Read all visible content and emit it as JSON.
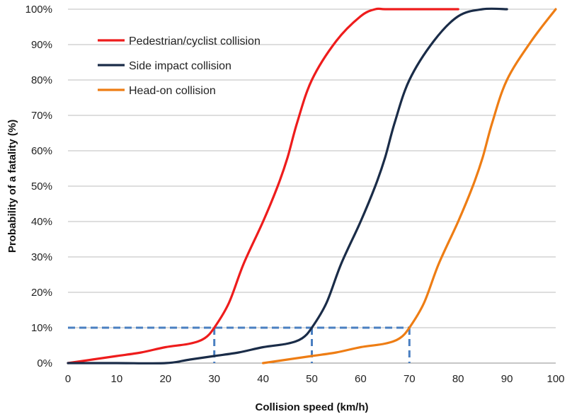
{
  "chart_data": {
    "type": "line",
    "title": "",
    "xlabel": "Collision speed (km/h)",
    "ylabel": "Probability of a fatality (%)",
    "xlim": [
      0,
      100
    ],
    "ylim": [
      0,
      100
    ],
    "x_ticks": [
      0,
      10,
      20,
      30,
      40,
      50,
      60,
      70,
      80,
      90,
      100
    ],
    "y_ticks": [
      0,
      10,
      20,
      30,
      40,
      50,
      60,
      70,
      80,
      90,
      100
    ],
    "x_tick_labels": [
      "0",
      "10",
      "20",
      "30",
      "40",
      "50",
      "60",
      "70",
      "80",
      "90",
      "100"
    ],
    "y_tick_labels": [
      "0%",
      "10%",
      "20%",
      "30%",
      "40%",
      "50%",
      "60%",
      "70%",
      "80%",
      "90%",
      "100%"
    ],
    "grid": "horizontal",
    "legend_position": "top-left",
    "series": [
      {
        "name": "Pedestrian/cyclist collision",
        "color": "#ee1c1c",
        "points": [
          [
            0,
            0
          ],
          [
            5,
            1
          ],
          [
            10,
            2
          ],
          [
            15,
            3
          ],
          [
            20,
            4.5
          ],
          [
            25,
            5.5
          ],
          [
            28,
            7
          ],
          [
            30,
            10
          ],
          [
            33,
            17
          ],
          [
            36,
            28
          ],
          [
            40,
            40
          ],
          [
            43,
            50
          ],
          [
            45,
            58
          ],
          [
            47,
            68
          ],
          [
            50,
            80
          ],
          [
            55,
            91
          ],
          [
            60,
            98
          ],
          [
            63,
            100
          ],
          [
            65,
            100
          ],
          [
            70,
            100
          ],
          [
            80,
            100
          ]
        ]
      },
      {
        "name": "Side impact collision",
        "color": "#1a2c48",
        "points": [
          [
            0,
            0
          ],
          [
            10,
            0
          ],
          [
            20,
            0
          ],
          [
            25,
            1
          ],
          [
            30,
            2
          ],
          [
            35,
            3
          ],
          [
            40,
            4.5
          ],
          [
            45,
            5.5
          ],
          [
            48,
            7
          ],
          [
            50,
            10
          ],
          [
            53,
            17
          ],
          [
            56,
            28
          ],
          [
            60,
            40
          ],
          [
            63,
            50
          ],
          [
            65,
            58
          ],
          [
            67,
            68
          ],
          [
            70,
            80
          ],
          [
            75,
            91
          ],
          [
            80,
            98
          ],
          [
            85,
            100
          ],
          [
            90,
            100
          ]
        ]
      },
      {
        "name": "Head-on collision",
        "color": "#ee7d14",
        "points": [
          [
            40,
            0
          ],
          [
            45,
            1
          ],
          [
            50,
            2
          ],
          [
            55,
            3
          ],
          [
            60,
            4.5
          ],
          [
            65,
            5.5
          ],
          [
            68,
            7
          ],
          [
            70,
            10
          ],
          [
            73,
            17
          ],
          [
            76,
            28
          ],
          [
            80,
            40
          ],
          [
            83,
            50
          ],
          [
            85,
            58
          ],
          [
            87,
            68
          ],
          [
            90,
            80
          ],
          [
            95,
            91
          ],
          [
            100,
            100
          ]
        ]
      }
    ],
    "reference_lines": {
      "color": "#4a7fc1",
      "y": 10,
      "x": [
        30,
        50,
        70
      ]
    }
  }
}
